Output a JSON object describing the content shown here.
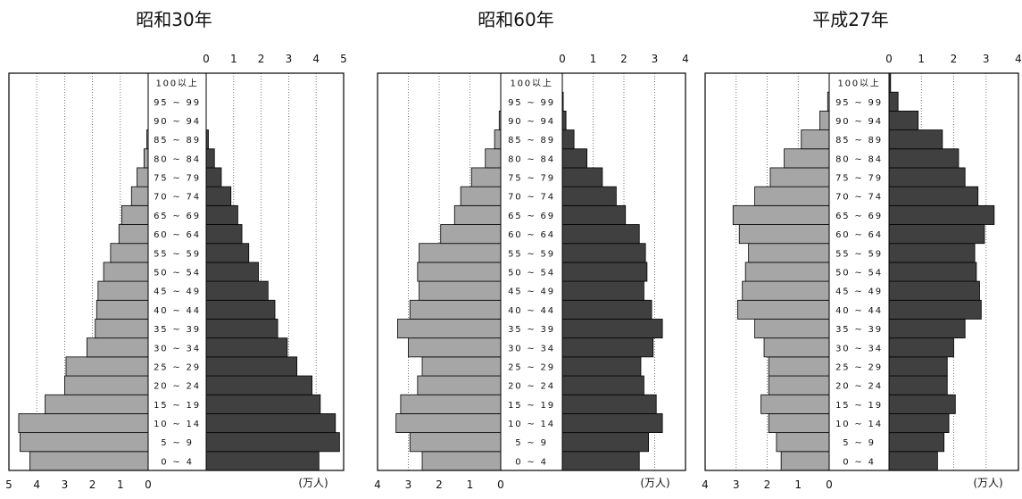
{
  "chart_data": [
    {
      "type": "bar",
      "title": "昭和30年",
      "unit_label": "(万人)",
      "age_groups": [
        "0 ~ 4",
        "5 ~ 9",
        "10 ~ 14",
        "15 ~ 19",
        "20 ~ 24",
        "25 ~ 29",
        "30 ~ 34",
        "35 ~ 39",
        "40 ~ 44",
        "45 ~ 49",
        "50 ~ 54",
        "55 ~ 59",
        "60 ~ 64",
        "65 ~ 69",
        "70 ~ 74",
        "75 ~ 79",
        "80 ~ 84",
        "85 ~ 89",
        "90 ~ 94",
        "95 ~ 99",
        "100以上"
      ],
      "left_ticks": [
        "5",
        "4",
        "3",
        "2",
        "1",
        "0"
      ],
      "right_ticks": [
        "0",
        "1",
        "2",
        "3",
        "4",
        "5"
      ],
      "xlim": [
        0,
        5
      ],
      "series": [
        {
          "side": "left",
          "color": "#a6a6a6",
          "values": [
            4.25,
            4.6,
            4.65,
            3.7,
            3.0,
            2.95,
            2.2,
            1.9,
            1.85,
            1.8,
            1.6,
            1.35,
            1.05,
            0.95,
            0.6,
            0.4,
            0.15,
            0.05,
            0.0,
            0.0,
            0.0
          ]
        },
        {
          "side": "right",
          "color": "#404040",
          "values": [
            4.1,
            4.85,
            4.7,
            4.15,
            3.85,
            3.3,
            2.95,
            2.6,
            2.5,
            2.25,
            1.9,
            1.55,
            1.3,
            1.15,
            0.9,
            0.55,
            0.3,
            0.08,
            0.0,
            0.0,
            0.0
          ]
        }
      ]
    },
    {
      "type": "bar",
      "title": "昭和60年",
      "unit_label": "(万人)",
      "age_groups": [
        "0 ~ 4",
        "5 ~ 9",
        "10 ~ 14",
        "15 ~ 19",
        "20 ~ 24",
        "25 ~ 29",
        "30 ~ 34",
        "35 ~ 39",
        "40 ~ 44",
        "45 ~ 49",
        "50 ~ 54",
        "55 ~ 59",
        "60 ~ 64",
        "65 ~ 69",
        "70 ~ 74",
        "75 ~ 79",
        "80 ~ 84",
        "85 ~ 89",
        "90 ~ 94",
        "95 ~ 99",
        "100以上"
      ],
      "left_ticks": [
        "4",
        "3",
        "2",
        "1",
        "0"
      ],
      "right_ticks": [
        "0",
        "1",
        "2",
        "3",
        "4"
      ],
      "xlim": [
        0,
        4
      ],
      "series": [
        {
          "side": "left",
          "color": "#a6a6a6",
          "values": [
            2.55,
            2.95,
            3.4,
            3.25,
            2.7,
            2.55,
            3.0,
            3.35,
            2.95,
            2.65,
            2.7,
            2.65,
            1.95,
            1.5,
            1.3,
            0.95,
            0.5,
            0.2,
            0.05,
            0.0,
            0.0
          ]
        },
        {
          "side": "right",
          "color": "#404040",
          "values": [
            2.5,
            2.8,
            3.25,
            3.05,
            2.65,
            2.55,
            2.95,
            3.25,
            2.9,
            2.65,
            2.75,
            2.7,
            2.5,
            2.05,
            1.75,
            1.3,
            0.8,
            0.38,
            0.12,
            0.03,
            0.0
          ]
        }
      ]
    },
    {
      "type": "bar",
      "title": "平成27年",
      "unit_label": "(万人)",
      "age_groups": [
        "0 ~ 4",
        "5 ~ 9",
        "10 ~ 14",
        "15 ~ 19",
        "20 ~ 24",
        "25 ~ 29",
        "30 ~ 34",
        "35 ~ 39",
        "40 ~ 44",
        "45 ~ 49",
        "50 ~ 54",
        "55 ~ 59",
        "60 ~ 64",
        "65 ~ 69",
        "70 ~ 74",
        "75 ~ 79",
        "80 ~ 84",
        "85 ~ 89",
        "90 ~ 94",
        "95 ~ 99",
        "100以上"
      ],
      "left_ticks": [
        "4",
        "3",
        "2",
        "1",
        "0"
      ],
      "right_ticks": [
        "0",
        "1",
        "2",
        "3",
        "4"
      ],
      "xlim": [
        0,
        4
      ],
      "series": [
        {
          "side": "left",
          "color": "#a6a6a6",
          "values": [
            1.55,
            1.7,
            1.95,
            2.2,
            1.95,
            1.95,
            2.1,
            2.4,
            2.95,
            2.8,
            2.7,
            2.6,
            2.9,
            3.1,
            2.4,
            1.9,
            1.45,
            0.9,
            0.3,
            0.05,
            0.0
          ]
        },
        {
          "side": "right",
          "color": "#404040",
          "values": [
            1.5,
            1.7,
            1.85,
            2.05,
            1.8,
            1.8,
            2.0,
            2.35,
            2.85,
            2.8,
            2.7,
            2.65,
            2.95,
            3.25,
            2.75,
            2.35,
            2.15,
            1.65,
            0.9,
            0.28,
            0.05
          ]
        }
      ]
    }
  ]
}
